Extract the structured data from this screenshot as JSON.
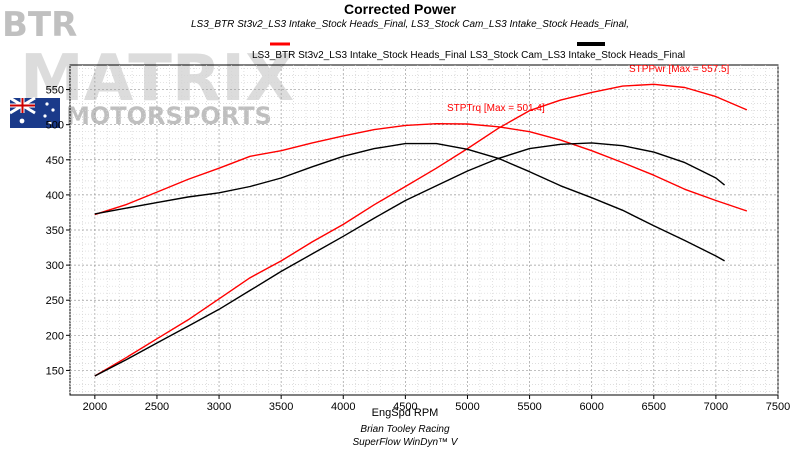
{
  "chart_data": {
    "type": "line",
    "title": "Corrected Power",
    "subtitle": "LS3_BTR St3v2_LS3 Intake_Stock Heads_Final, LS3_Stock Cam_LS3 Intake_Stock Heads_Final,",
    "xlabel": "EngSpd RPM",
    "xlim": [
      1800,
      7500
    ],
    "ylim": [
      115,
      585
    ],
    "xticks": [
      2000,
      2500,
      3000,
      3500,
      4000,
      4500,
      5000,
      5500,
      6000,
      6500,
      7000,
      7500
    ],
    "yticks": [
      150,
      200,
      250,
      300,
      350,
      400,
      450,
      500,
      550
    ],
    "grid": true,
    "legend": [
      {
        "label": "LS3_BTR St3v2_LS3 Intake_Stock Heads_Final",
        "color": "#ff0000"
      },
      {
        "label": "LS3_Stock Cam_LS3 Intake_Stock Heads_Final",
        "color": "#000000"
      }
    ],
    "annotations": [
      {
        "text": "STPPwr [Max = 557.5]",
        "color": "#ff0000"
      },
      {
        "text": "STPTrq [Max = 501.4]",
        "color": "#ff0000"
      }
    ],
    "credits": [
      "Brian Tooley Racing",
      "SuperFlow WinDyn™ V"
    ],
    "series": [
      {
        "id": "btr-power",
        "color": "#ff0000",
        "x": [
          2000,
          2250,
          2500,
          2750,
          3000,
          3250,
          3500,
          3750,
          4000,
          4250,
          4500,
          4750,
          5000,
          5250,
          5500,
          5750,
          6000,
          6250,
          6500,
          6750,
          7000,
          7250
        ],
        "y": [
          142,
          168,
          195,
          222,
          252,
          282,
          306,
          333,
          358,
          386,
          412,
          438,
          466,
          495,
          520,
          535,
          546,
          555,
          557.5,
          553,
          540,
          521
        ]
      },
      {
        "id": "btr-torque",
        "color": "#ff0000",
        "x": [
          2000,
          2250,
          2500,
          2750,
          3000,
          3250,
          3500,
          3750,
          4000,
          4250,
          4500,
          4750,
          5000,
          5250,
          5500,
          5750,
          6000,
          6250,
          6500,
          6750,
          7000,
          7250
        ],
        "y": [
          372,
          386,
          404,
          422,
          438,
          455,
          463,
          474,
          484,
          493,
          499,
          501.4,
          501,
          497,
          490,
          478,
          463,
          446,
          428,
          408,
          392,
          377
        ]
      },
      {
        "id": "stock-power",
        "color": "#000000",
        "x": [
          2000,
          2250,
          2500,
          2750,
          3000,
          3250,
          3500,
          3750,
          4000,
          4250,
          4500,
          4750,
          5000,
          5250,
          5500,
          5750,
          6000,
          6250,
          6500,
          6750,
          7000,
          7070
        ],
        "y": [
          142,
          165,
          189,
          213,
          237,
          264,
          291,
          316,
          341,
          367,
          392,
          413,
          434,
          452,
          466,
          472,
          474,
          470,
          461,
          446,
          424,
          414
        ]
      },
      {
        "id": "stock-torque",
        "color": "#000000",
        "x": [
          2000,
          2250,
          2500,
          2750,
          3000,
          3250,
          3500,
          3750,
          4000,
          4250,
          4500,
          4750,
          5000,
          5250,
          5500,
          5750,
          6000,
          6250,
          6500,
          6750,
          7000,
          7070
        ],
        "y": [
          373,
          381,
          389,
          397,
          403,
          412,
          424,
          440,
          455,
          466,
          473,
          473,
          465,
          452,
          433,
          413,
          396,
          378,
          356,
          335,
          313,
          306
        ]
      }
    ]
  },
  "watermark": {
    "main": "MATRIX",
    "sub": "MOTORSPORTS",
    "badge": "BTR"
  }
}
